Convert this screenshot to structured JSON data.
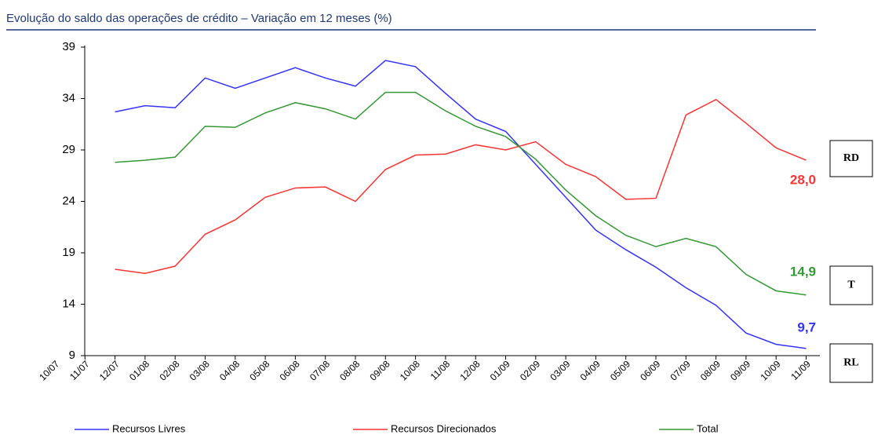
{
  "chart_data": {
    "type": "line",
    "title": "Evolução do saldo das operações de crédito – Variação em 12 meses (%)",
    "categories": [
      "10/07",
      "11/07",
      "12/07",
      "01/08",
      "02/08",
      "03/08",
      "04/08",
      "05/08",
      "06/08",
      "07/08",
      "08/08",
      "09/08",
      "10/08",
      "11/08",
      "12/08",
      "01/09",
      "02/09",
      "03/09",
      "04/09",
      "05/09",
      "06/09",
      "07/09",
      "08/09",
      "09/09",
      "10/09",
      "11/09"
    ],
    "series": [
      {
        "name": "Recursos Livres",
        "color": "#3333ff",
        "values": [
          null,
          null,
          32.7,
          33.3,
          33.1,
          36.0,
          35.0,
          36.0,
          37.0,
          36.0,
          35.2,
          37.7,
          37.1,
          34.5,
          32.0,
          30.8,
          27.6,
          24.4,
          21.2,
          19.3,
          17.6,
          15.6,
          13.9,
          11.2,
          10.1,
          9.7
        ],
        "value_labels": [
          null,
          null,
          null,
          null,
          null,
          null,
          null,
          null,
          null,
          null,
          null,
          null,
          null,
          null,
          null,
          null,
          null,
          null,
          null,
          null,
          null,
          null,
          null,
          null,
          null,
          "9,7"
        ]
      },
      {
        "name": "Recursos Direcionados",
        "color": "#ff3333",
        "values": [
          null,
          null,
          17.4,
          17.0,
          17.7,
          20.8,
          22.2,
          24.4,
          25.3,
          25.4,
          24.0,
          27.1,
          28.5,
          28.6,
          29.5,
          29.0,
          29.8,
          27.6,
          26.4,
          24.2,
          24.3,
          32.4,
          33.9,
          31.6,
          29.2,
          28.0
        ],
        "value_labels": [
          null,
          null,
          null,
          null,
          null,
          null,
          null,
          null,
          null,
          null,
          null,
          null,
          null,
          null,
          null,
          null,
          null,
          null,
          null,
          null,
          null,
          null,
          null,
          null,
          null,
          "28,0"
        ]
      },
      {
        "name": "Total",
        "color": "#339933",
        "values": [
          null,
          null,
          27.8,
          28.0,
          28.3,
          31.3,
          31.2,
          32.6,
          33.6,
          33.0,
          32.0,
          34.6,
          34.6,
          32.8,
          31.3,
          30.3,
          28.1,
          25.1,
          22.6,
          20.7,
          19.6,
          20.4,
          19.6,
          16.9,
          15.3,
          14.9
        ],
        "value_labels": [
          null,
          null,
          null,
          null,
          null,
          null,
          null,
          null,
          null,
          null,
          null,
          null,
          null,
          null,
          null,
          null,
          null,
          null,
          null,
          null,
          null,
          null,
          null,
          null,
          null,
          "14,9"
        ]
      }
    ],
    "ylim": [
      9,
      39
    ],
    "yticks": [
      9,
      14,
      19,
      24,
      29,
      34,
      39
    ],
    "annotations": [
      "RD",
      "T",
      "RL"
    ]
  }
}
